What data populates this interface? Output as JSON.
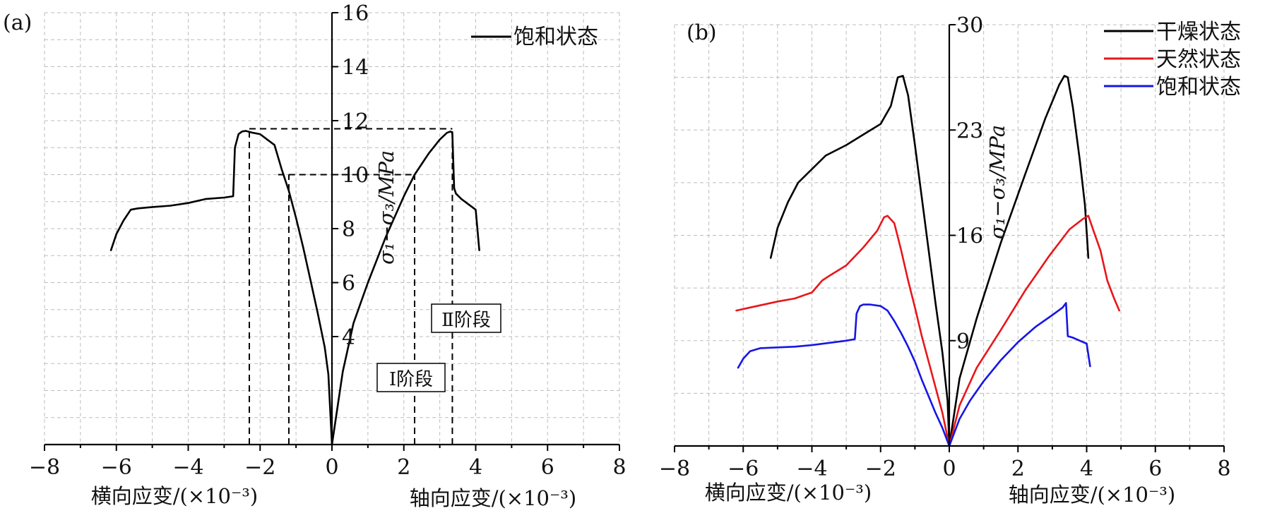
{
  "chart_data": [
    {
      "panel_label": "(a)",
      "type": "line",
      "xlim": [
        -8,
        8
      ],
      "ylim": [
        0,
        16
      ],
      "x_ticks": [
        -8,
        -6,
        -4,
        -2,
        0,
        2,
        4,
        6,
        8
      ],
      "x_tick_labels": [
        "−8",
        "−6",
        "−4",
        "−2",
        "0",
        "2",
        "4",
        "6",
        "8"
      ],
      "y_ticks": [
        4,
        6,
        8,
        10,
        12,
        14,
        16
      ],
      "y_tick_labels": [
        "4",
        "6",
        "8",
        "10",
        "12",
        "14",
        "16"
      ],
      "xlabel_left": "横向应变/(×10⁻³)",
      "xlabel_right": "轴向应变/(×10⁻³)",
      "ylabel": "σ₁−σ₃/MPa",
      "grid": true,
      "legend_position": "top-right",
      "series": [
        {
          "name": "饱和状态",
          "color": "#000000",
          "x": [
            -6.15,
            -6.0,
            -5.8,
            -5.6,
            -5.4,
            -5.0,
            -4.5,
            -4.0,
            -3.5,
            -3.0,
            -2.75,
            -2.7,
            -2.6,
            -2.5,
            -2.4,
            -2.2,
            -2.0,
            -1.8,
            -1.6,
            -1.4,
            -1.2,
            -1.0,
            -0.8,
            -0.6,
            -0.4,
            -0.2,
            -0.1,
            0.0,
            0.3,
            0.6,
            1.0,
            1.5,
            2.0,
            2.3,
            2.7,
            3.0,
            3.2,
            3.3,
            3.35,
            3.4,
            3.45,
            3.6,
            3.8,
            4.0,
            4.1
          ],
          "y": [
            7.2,
            7.8,
            8.3,
            8.7,
            8.75,
            8.8,
            8.85,
            8.95,
            9.1,
            9.15,
            9.2,
            11.0,
            11.5,
            11.6,
            11.62,
            11.55,
            11.5,
            11.3,
            11.1,
            10.2,
            9.4,
            8.4,
            7.3,
            6.1,
            4.9,
            3.6,
            2.6,
            0.0,
            2.7,
            4.5,
            6.0,
            7.7,
            9.2,
            10.0,
            10.8,
            11.3,
            11.55,
            11.6,
            11.55,
            9.5,
            9.3,
            9.1,
            8.9,
            8.7,
            7.2
          ]
        }
      ],
      "reference_lines": [
        {
          "from": [
            -2.3,
            11.7
          ],
          "to": [
            3.35,
            11.7
          ]
        },
        {
          "from": [
            -1.5,
            10.0
          ],
          "to": [
            2.3,
            10.0
          ]
        },
        {
          "from": [
            -2.3,
            0.0
          ],
          "to": [
            -2.3,
            11.7
          ]
        },
        {
          "from": [
            -1.2,
            0.0
          ],
          "to": [
            -1.2,
            10.0
          ]
        },
        {
          "from": [
            2.3,
            0.0
          ],
          "to": [
            2.3,
            10.0
          ]
        },
        {
          "from": [
            3.35,
            0.0
          ],
          "to": [
            3.35,
            11.7
          ]
        }
      ],
      "annotations": [
        {
          "text": "Ⅰ阶段",
          "x": 1.55,
          "y": 3.0
        },
        {
          "text": "Ⅱ阶段",
          "x": 3.65,
          "y": 5.95
        }
      ]
    },
    {
      "panel_label": "(b)",
      "type": "line",
      "xlim": [
        -8,
        8
      ],
      "ylim": [
        2,
        30
      ],
      "x_ticks": [
        -8,
        -6,
        -4,
        -2,
        0,
        2,
        4,
        6,
        8
      ],
      "x_tick_labels": [
        "−8",
        "−6",
        "−4",
        "−2",
        "0",
        "2",
        "4",
        "6",
        "8"
      ],
      "y_ticks": [
        9,
        16,
        23,
        30
      ],
      "y_tick_labels": [
        "9",
        "16",
        "23",
        "30"
      ],
      "xlabel_left": "横向应变/(×10⁻³)",
      "xlabel_right": "轴向应变/(×10⁻³)",
      "ylabel": "σ₁−σ₃/MPa",
      "grid": true,
      "legend_position": "top-right",
      "series": [
        {
          "name": "干燥状态",
          "color": "#000000",
          "x": [
            -5.2,
            -5.0,
            -4.7,
            -4.4,
            -4.0,
            -3.6,
            -3.0,
            -2.5,
            -2.0,
            -1.7,
            -1.5,
            -1.35,
            -1.2,
            -1.0,
            -0.8,
            -0.6,
            -0.4,
            -0.2,
            -0.05,
            0.0,
            0.3,
            0.8,
            1.5,
            2.2,
            2.8,
            3.2,
            3.35,
            3.45,
            3.6,
            3.8,
            3.95,
            4.05
          ],
          "y": [
            14.5,
            16.5,
            18.2,
            19.5,
            20.4,
            21.3,
            22.0,
            22.7,
            23.4,
            24.6,
            26.5,
            26.6,
            25.3,
            22.0,
            18.5,
            15.0,
            11.5,
            8.2,
            5.0,
            2.0,
            6.5,
            10.5,
            15.5,
            20.0,
            23.8,
            26.0,
            26.6,
            26.5,
            24.5,
            21.0,
            18.0,
            14.5
          ]
        },
        {
          "name": "天然状态",
          "color": "#e8161a",
          "x": [
            -6.2,
            -5.8,
            -5.0,
            -4.5,
            -4.0,
            -3.7,
            -3.5,
            -3.0,
            -2.5,
            -2.1,
            -1.9,
            -1.8,
            -1.6,
            -1.4,
            -1.2,
            -1.0,
            -0.8,
            -0.6,
            -0.4,
            -0.2,
            0.0,
            0.3,
            0.8,
            1.5,
            2.2,
            2.9,
            3.5,
            3.9,
            4.05,
            4.2,
            4.4,
            4.6,
            4.8,
            4.95
          ],
          "y": [
            11.0,
            11.2,
            11.6,
            11.8,
            12.2,
            13.0,
            13.3,
            14.0,
            15.2,
            16.3,
            17.2,
            17.3,
            16.8,
            15.0,
            13.0,
            11.2,
            9.3,
            7.6,
            5.9,
            4.2,
            2.0,
            4.7,
            7.2,
            9.7,
            12.3,
            14.6,
            16.4,
            17.1,
            17.3,
            16.3,
            15.0,
            13.0,
            11.8,
            11.0
          ]
        },
        {
          "name": "饱和状态",
          "color": "#1616e6",
          "x": [
            -6.15,
            -6.0,
            -5.8,
            -5.5,
            -5.0,
            -4.5,
            -4.0,
            -3.5,
            -3.0,
            -2.75,
            -2.7,
            -2.6,
            -2.5,
            -2.3,
            -2.0,
            -1.8,
            -1.6,
            -1.4,
            -1.2,
            -1.0,
            -0.8,
            -0.6,
            -0.4,
            -0.2,
            0.0,
            0.3,
            0.6,
            1.0,
            1.5,
            2.0,
            2.5,
            3.0,
            3.3,
            3.4,
            3.45,
            3.6,
            3.8,
            4.0,
            4.1
          ],
          "y": [
            7.2,
            7.8,
            8.3,
            8.5,
            8.55,
            8.6,
            8.7,
            8.85,
            9.0,
            9.1,
            10.8,
            11.3,
            11.4,
            11.4,
            11.3,
            11.0,
            10.3,
            9.5,
            8.6,
            7.6,
            6.4,
            5.3,
            4.2,
            3.2,
            2.0,
            3.8,
            5.0,
            6.3,
            7.7,
            8.9,
            9.9,
            10.7,
            11.2,
            11.5,
            9.3,
            9.2,
            9.0,
            8.8,
            7.3
          ]
        }
      ],
      "reference_lines": [],
      "annotations": []
    }
  ]
}
